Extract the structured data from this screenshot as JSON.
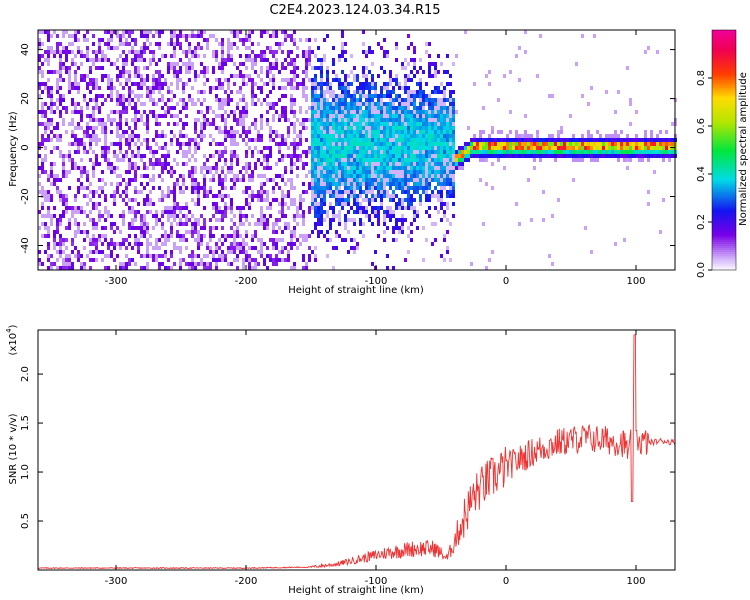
{
  "title": "C2E4.2023.124.03.34.R15",
  "chart_data": [
    {
      "type": "heatmap",
      "xlabel": "Height of straight line (km)",
      "ylabel": "Frequency (Hz)",
      "xlim": [
        -360,
        130
      ],
      "ylim": [
        -50,
        48
      ],
      "x_ticks": [
        -300,
        -200,
        -100,
        0,
        100
      ],
      "y_ticks": [
        -40,
        -20,
        0,
        20,
        40
      ],
      "colorbar": {
        "label": "Normalized spectral amplitude",
        "range": [
          0.0,
          1.0
        ],
        "ticks": [
          0.0,
          0.2,
          0.4,
          0.6,
          0.8
        ],
        "tick_labels": [
          "0.0",
          "0.2",
          "0.4",
          "0.6",
          "0.8"
        ],
        "colormap": "rainbow (purple-blue-cyan-green-yellow-red-magenta)"
      },
      "regions": [
        {
          "x_range": [
            -360,
            -150
          ],
          "freq_range": [
            -50,
            48
          ],
          "amplitude": 0.1,
          "pattern": "scattered noise"
        },
        {
          "x_range": [
            -150,
            -40
          ],
          "freq_range": [
            -20,
            20
          ],
          "amplitude": 0.25,
          "pattern": "concentrated near 0 Hz"
        },
        {
          "x_range": [
            -40,
            130
          ],
          "freq_range": [
            -3,
            4
          ],
          "amplitude": 0.8,
          "pattern": "narrow band near ~1 Hz"
        }
      ]
    },
    {
      "type": "line",
      "xlabel": "Height of straight line (km)",
      "ylabel": "SNR (10 * v/v)",
      "multiplier": "(x10",
      "multiplier_exp": "4",
      "multiplier_close": ")",
      "xlim": [
        -360,
        130
      ],
      "ylim": [
        0,
        2.45
      ],
      "x_ticks": [
        -300,
        -200,
        -100,
        0,
        100
      ],
      "y_ticks": [
        0.5,
        1.0,
        1.5,
        2.0
      ],
      "y_tick_labels": [
        "0.5",
        "1.0",
        "1.5",
        "2.0"
      ],
      "color": "#ee3333",
      "x": [
        -360,
        -300,
        -200,
        -150,
        -130,
        -110,
        -90,
        -70,
        -55,
        -45,
        -35,
        -25,
        -15,
        0,
        20,
        40,
        60,
        80,
        90,
        95,
        98,
        100,
        105,
        110,
        120,
        130
      ],
      "y": [
        0.02,
        0.02,
        0.02,
        0.03,
        0.06,
        0.12,
        0.18,
        0.22,
        0.22,
        0.12,
        0.45,
        0.75,
        0.9,
        1.05,
        1.2,
        1.3,
        1.35,
        1.32,
        1.3,
        1.2,
        1.5,
        1.35,
        1.3,
        1.3,
        1.32,
        1.3
      ]
    }
  ]
}
